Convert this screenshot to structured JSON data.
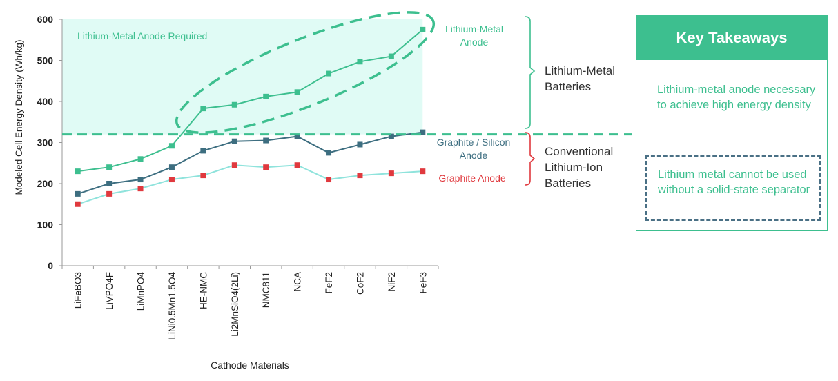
{
  "chart_data": {
    "type": "line",
    "title": "",
    "xlabel": "Cathode Materials",
    "ylabel": "Modeled Cell Energy Density (Wh/kg)",
    "ylim": [
      0,
      600
    ],
    "yticks": [
      0,
      100,
      200,
      300,
      400,
      500,
      600
    ],
    "categories": [
      "LiFeBO3",
      "LiVPO4F",
      "LiMnPO4",
      "LiNi0.5Mn1.5O4",
      "HE-NMC",
      "Li2MnSiO4(2Li)",
      "NMC811",
      "NCA",
      "FeF2",
      "CoF2",
      "NiF2",
      "FeF3"
    ],
    "series": [
      {
        "name": "Lithium-Metal Anode",
        "label": [
          "Lithium-Metal",
          "Anode"
        ],
        "color": "#3dbf8f",
        "marker_color": "#3dbf8f",
        "values": [
          230,
          240,
          260,
          292,
          383,
          392,
          412,
          423,
          468,
          497,
          510,
          575
        ]
      },
      {
        "name": "Graphite / Silicon Anode",
        "label": [
          "Graphite / Silicon",
          "Anode"
        ],
        "color": "#3d6e80",
        "marker_color": "#3d6e80",
        "values": [
          175,
          200,
          210,
          240,
          280,
          303,
          305,
          315,
          275,
          295,
          315,
          325
        ]
      },
      {
        "name": "Graphite Anode",
        "label": [
          "Graphite Anode"
        ],
        "color": "#8fe3dc",
        "marker_color": "#e0393e",
        "values": [
          150,
          175,
          188,
          210,
          220,
          245,
          240,
          245,
          210,
          220,
          225,
          230
        ]
      }
    ],
    "threshold": 320,
    "region_label": "Lithium-Metal Anode Required",
    "region_color": "#e0fbf5",
    "groups": [
      {
        "label": [
          "Lithium-Metal",
          "Batteries"
        ],
        "bracket_color": "#3dbf8f"
      },
      {
        "label": [
          "Conventional",
          "Lithium-Ion",
          "Batteries"
        ],
        "bracket_color": "#e0393e"
      }
    ]
  },
  "takeaways": {
    "title": "Key Takeaways",
    "item1": "Lithium-metal anode necessary to achieve high energy density",
    "item2": "Lithium metal cannot be used without a solid-state separator"
  }
}
